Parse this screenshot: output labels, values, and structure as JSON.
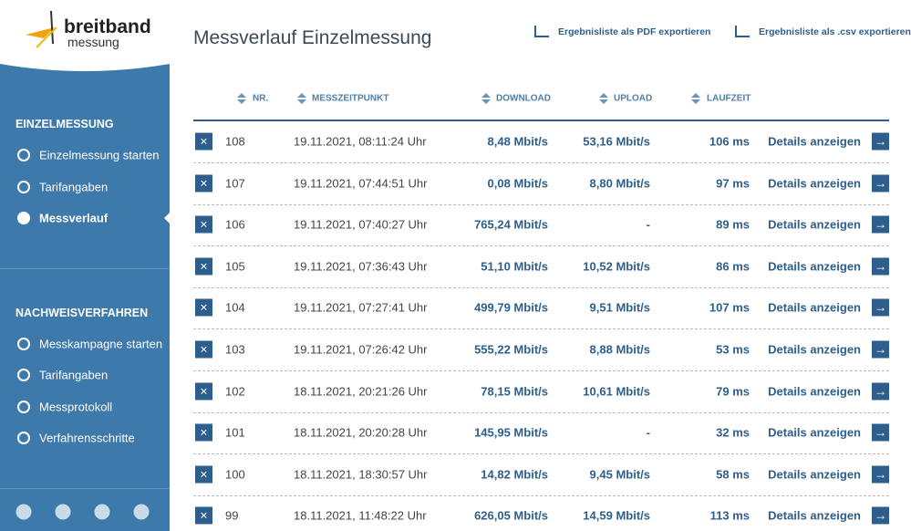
{
  "logo": {
    "name": "breitband",
    "sub": "messung"
  },
  "sidebar": {
    "sections": [
      {
        "title": "EINZELMESSUNG",
        "items": [
          "Einzelmessung starten",
          "Tarifangaben",
          "Messverlauf"
        ]
      },
      {
        "title": "NACHWEISVERFAHREN",
        "items": [
          "Messkampagne starten",
          "Tarifangaben",
          "Messprotokoll",
          "Verfahrensschritte"
        ]
      }
    ]
  },
  "header": {
    "title": "Messverlauf Einzelmessung",
    "exports": [
      "Ergebnisliste als PDF exportieren",
      "Ergebnisliste als .csv exportieren"
    ]
  },
  "table": {
    "columns": [
      "NR.",
      "MESSZEITPUNKT",
      "DOWNLOAD",
      "UPLOAD",
      "LAUFZEIT"
    ],
    "rows": [
      [
        "108",
        "19.11.2021, 08:11:24 Uhr",
        "8,48 Mbit/s",
        "53,16 Mbit/s",
        "106 ms",
        "Details anzeigen"
      ],
      [
        "107",
        "19.11.2021, 07:44:51 Uhr",
        "0,08 Mbit/s",
        "8,80 Mbit/s",
        "97 ms",
        "Details anzeigen"
      ],
      [
        "106",
        "19.11.2021, 07:40:27 Uhr",
        "765,24 Mbit/s",
        "-",
        "89 ms",
        "Details anzeigen"
      ],
      [
        "105",
        "19.11.2021, 07:36:43 Uhr",
        "51,10 Mbit/s",
        "10,52 Mbit/s",
        "86 ms",
        "Details anzeigen"
      ],
      [
        "104",
        "19.11.2021, 07:27:41 Uhr",
        "499,79 Mbit/s",
        "9,51 Mbit/s",
        "107 ms",
        "Details anzeigen"
      ],
      [
        "103",
        "19.11.2021, 07:26:42 Uhr",
        "555,22 Mbit/s",
        "8,88 Mbit/s",
        "53 ms",
        "Details anzeigen"
      ],
      [
        "102",
        "18.11.2021, 20:21:26 Uhr",
        "78,15 Mbit/s",
        "10,61 Mbit/s",
        "79 ms",
        "Details anzeigen"
      ],
      [
        "101",
        "18.11.2021, 20:20:28 Uhr",
        "145,95 Mbit/s",
        "-",
        "32 ms",
        "Details anzeigen"
      ],
      [
        "100",
        "18.11.2021, 18:30:57 Uhr",
        "14,82 Mbit/s",
        "9,45 Mbit/s",
        "58 ms",
        "Details anzeigen"
      ],
      [
        "99",
        "18.11.2021, 11:48:22 Uhr",
        "626,05 Mbit/s",
        "14,59 Mbit/s",
        "113 ms",
        "Details anzeigen"
      ]
    ]
  }
}
